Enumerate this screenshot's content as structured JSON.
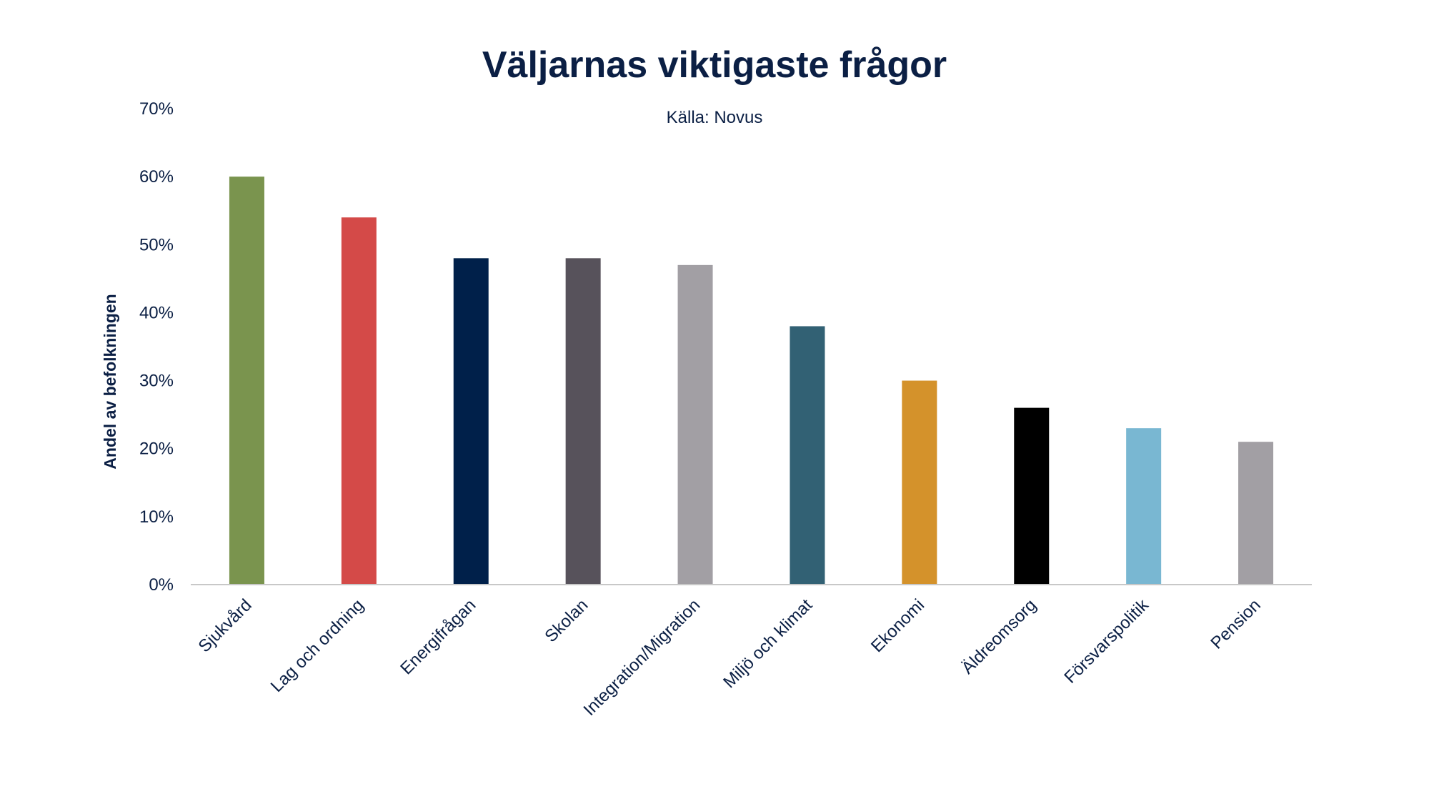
{
  "chart_data": {
    "type": "bar",
    "title": "Väljarnas viktigaste frågor",
    "subtitle": "Källa: Novus",
    "xlabel": "",
    "ylabel": "Andel av befolkningen",
    "ylim": [
      0,
      0.7
    ],
    "yticks": [
      "0%",
      "10%",
      "20%",
      "30%",
      "40%",
      "50%",
      "60%",
      "70%"
    ],
    "grid": false,
    "categories": [
      "Sjukvård",
      "Lag och ordning",
      "Energifrågan",
      "Skolan",
      "Integration/Migration",
      "Miljö och klimat",
      "Ekonomi",
      "Äldreomsorg",
      "Försvarspolitik",
      "Pension"
    ],
    "values": [
      0.6,
      0.54,
      0.48,
      0.48,
      0.47,
      0.38,
      0.3,
      0.26,
      0.23,
      0.21
    ],
    "colors": [
      "#7a944e",
      "#d44a48",
      "#00204a",
      "#57525b",
      "#a29fa4",
      "#326174",
      "#d4922b",
      "#000000",
      "#79b7d2",
      "#a29fa4"
    ],
    "axis_color": "#c8c8c8"
  }
}
